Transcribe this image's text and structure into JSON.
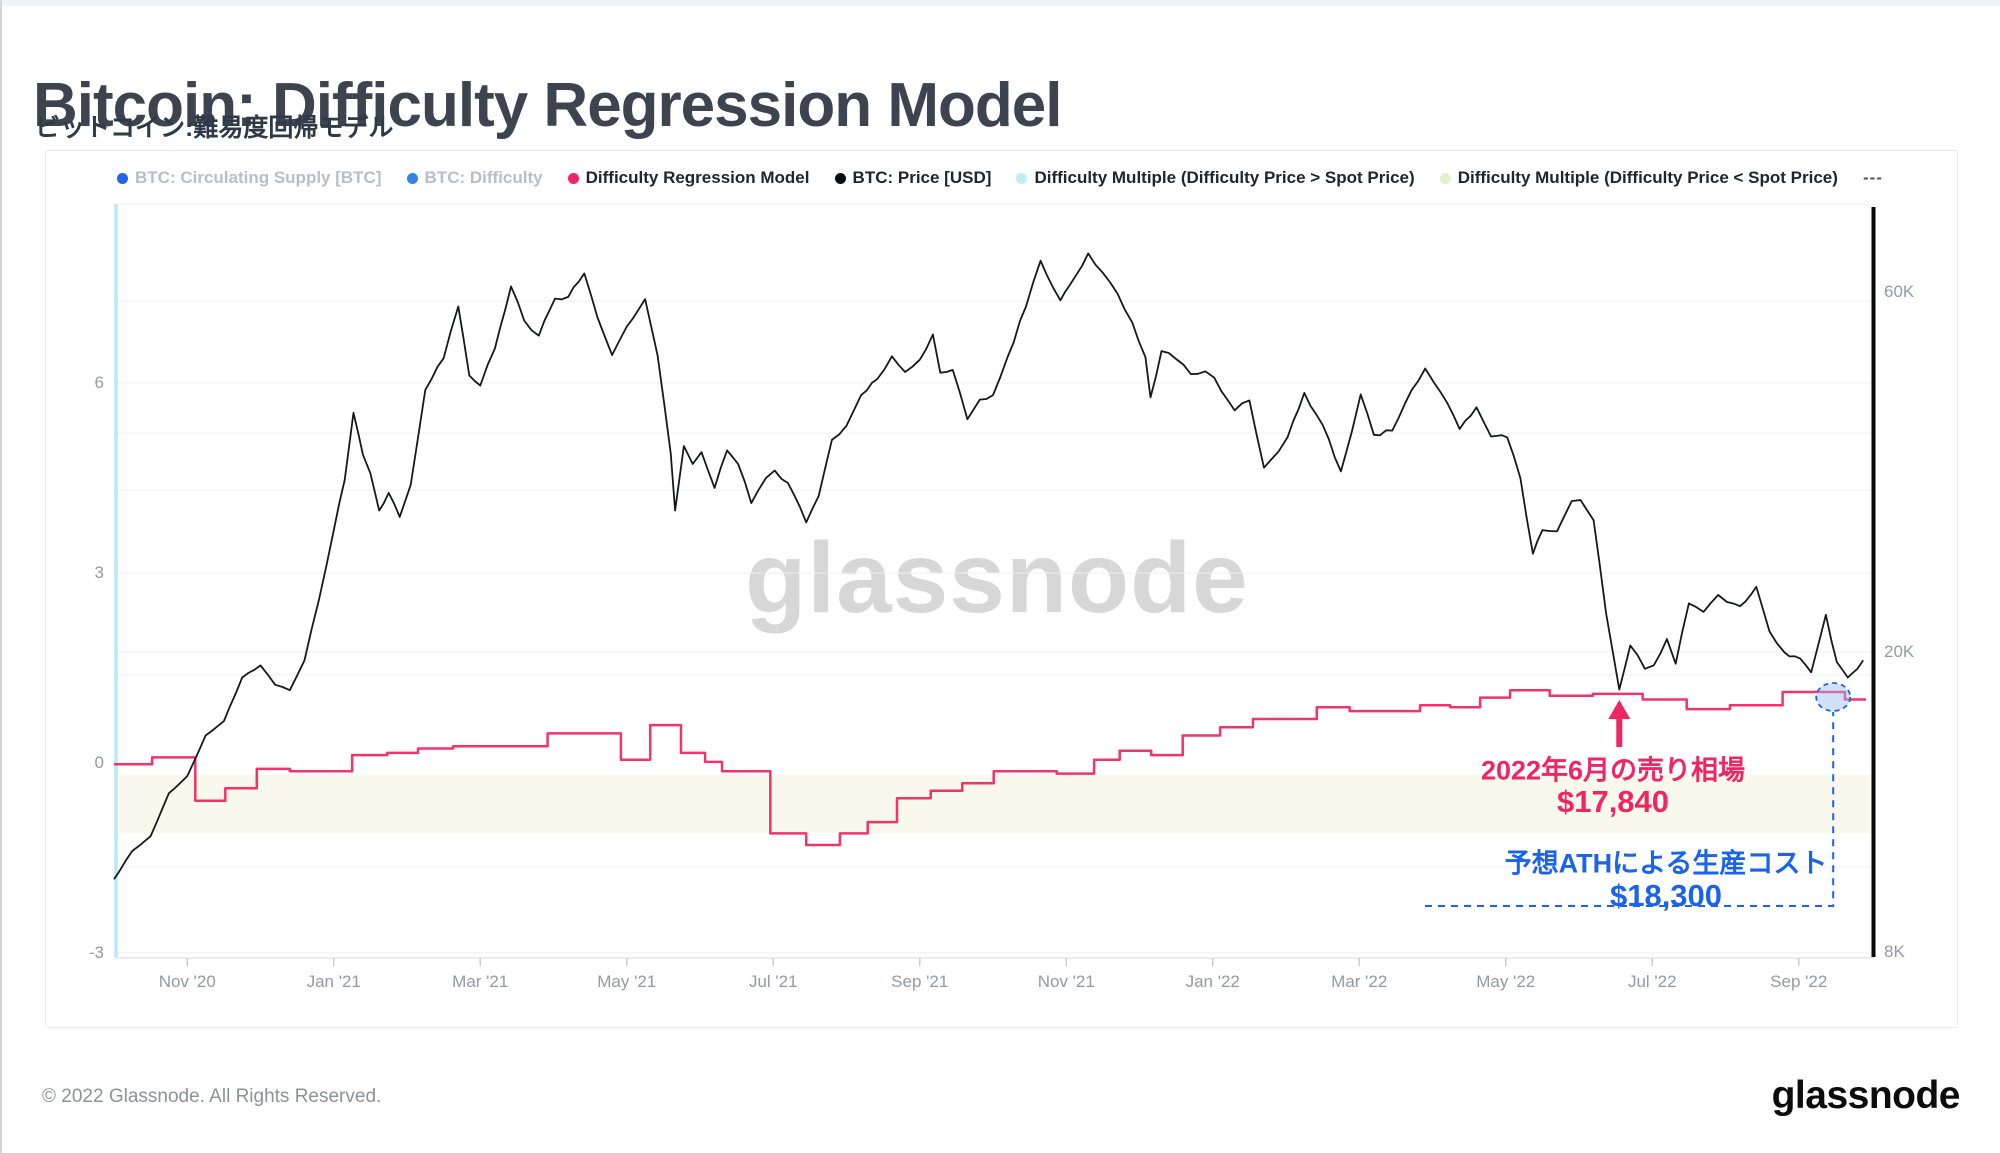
{
  "page": {
    "title": "Bitcoin: Difficulty Regression Model",
    "subtitle": "ビットコイン:難易度回帰モデル"
  },
  "legend": {
    "items": [
      {
        "label": "BTC: Circulating Supply [BTC]",
        "color": "#2563e8",
        "muted": true
      },
      {
        "label": "BTC: Difficulty",
        "color": "#2e86e0",
        "muted": true
      },
      {
        "label": "Difficulty Regression Model",
        "color": "#f0246b",
        "muted": false
      },
      {
        "label": "BTC: Price [USD]",
        "color": "#0b0d10",
        "muted": false
      },
      {
        "label": "Difficulty Multiple (Difficulty Price > Spot Price)",
        "color": "#bfecf5",
        "muted": false
      },
      {
        "label": "Difficulty Multiple (Difficulty Price < Spot Price)",
        "color": "#e7eecb",
        "muted": false
      },
      {
        "label": "---",
        "color": null,
        "muted": false,
        "overflow": true
      }
    ]
  },
  "watermark": "glassnode",
  "annotations": {
    "sell_event": {
      "line1": "2022年6月の売り相場",
      "line2": "$17,840",
      "color": "#f02563"
    },
    "production_cost": {
      "line1": "予想ATHによる生産コスト",
      "line2": "$18,300",
      "color": "#1b63e8"
    }
  },
  "footer": {
    "copyright": "© 2022 Glassnode. All Rights Reserved.",
    "brand": "glassnode"
  },
  "chart_data": {
    "type": "line",
    "title": "Bitcoin: Difficulty Regression Model",
    "x_axis": {
      "unit": "months since Oct 1 2020",
      "range_months": [
        0,
        24
      ],
      "tick_labels": [
        "Nov '20",
        "Jan '21",
        "Mar '21",
        "May '21",
        "Jul '21",
        "Sep '21",
        "Nov '21",
        "Jan '22",
        "Mar '22",
        "May '22",
        "Jul '22",
        "Sep '22"
      ],
      "tick_months": [
        1,
        3,
        5,
        7,
        9,
        11,
        13,
        15,
        17,
        19,
        21,
        23
      ]
    },
    "y_axis_left": {
      "scale": "linear",
      "tick_labels": [
        "6",
        "3",
        "0",
        "-3"
      ],
      "tick_values": [
        6,
        3,
        0,
        -3
      ]
    },
    "y_axis_right": {
      "scale": "log",
      "unit": "USD",
      "tick_labels": [
        "60K",
        "20K",
        "8K"
      ],
      "tick_values": [
        60000,
        20000,
        8000
      ]
    },
    "grid": true,
    "legend_position": "top",
    "series": [
      {
        "name": "BTC: Price [USD]",
        "type": "line",
        "color": "#16181c",
        "unit": "USD thousands",
        "points": [
          [
            0,
            10.0
          ],
          [
            0.25,
            10.9
          ],
          [
            0.5,
            11.4
          ],
          [
            0.75,
            13.0
          ],
          [
            1,
            13.7
          ],
          [
            1.25,
            15.5
          ],
          [
            1.5,
            16.2
          ],
          [
            1.75,
            18.5
          ],
          [
            2,
            19.2
          ],
          [
            2.2,
            18.1
          ],
          [
            2.4,
            17.8
          ],
          [
            2.6,
            19.5
          ],
          [
            2.8,
            23.5
          ],
          [
            3,
            29.0
          ],
          [
            3.15,
            33.8
          ],
          [
            3.27,
            41.5
          ],
          [
            3.4,
            36.5
          ],
          [
            3.5,
            34.5
          ],
          [
            3.62,
            30.8
          ],
          [
            3.75,
            32.5
          ],
          [
            3.9,
            30.2
          ],
          [
            4.05,
            33.3
          ],
          [
            4.25,
            44.5
          ],
          [
            4.5,
            49.0
          ],
          [
            4.7,
            57.4
          ],
          [
            4.85,
            46.5
          ],
          [
            5,
            45.1
          ],
          [
            5.2,
            50.5
          ],
          [
            5.42,
            61.0
          ],
          [
            5.6,
            55.0
          ],
          [
            5.8,
            52.5
          ],
          [
            6.02,
            58.8
          ],
          [
            6.2,
            59.1
          ],
          [
            6.42,
            63.5
          ],
          [
            6.6,
            55.5
          ],
          [
            6.8,
            49.5
          ],
          [
            7,
            54.0
          ],
          [
            7.25,
            58.7
          ],
          [
            7.42,
            49.5
          ],
          [
            7.6,
            36.7
          ],
          [
            7.66,
            30.8
          ],
          [
            7.78,
            37.5
          ],
          [
            7.9,
            35.5
          ],
          [
            8.02,
            36.8
          ],
          [
            8.2,
            33.0
          ],
          [
            8.37,
            37.0
          ],
          [
            8.52,
            35.5
          ],
          [
            8.7,
            31.5
          ],
          [
            8.9,
            34.0
          ],
          [
            9.02,
            34.8
          ],
          [
            9.2,
            33.5
          ],
          [
            9.45,
            29.7
          ],
          [
            9.62,
            32.2
          ],
          [
            9.8,
            38.2
          ],
          [
            10,
            39.9
          ],
          [
            10.2,
            43.8
          ],
          [
            10.42,
            46.0
          ],
          [
            10.62,
            49.3
          ],
          [
            10.8,
            47.0
          ],
          [
            11,
            48.8
          ],
          [
            11.18,
            52.7
          ],
          [
            11.28,
            46.9
          ],
          [
            11.45,
            47.3
          ],
          [
            11.65,
            40.7
          ],
          [
            11.82,
            43.2
          ],
          [
            12,
            43.8
          ],
          [
            12.2,
            49.2
          ],
          [
            12.45,
            57.4
          ],
          [
            12.65,
            66.0
          ],
          [
            12.82,
            60.8
          ],
          [
            12.92,
            58.5
          ],
          [
            13.05,
            61.3
          ],
          [
            13.3,
            67.5
          ],
          [
            13.5,
            63.6
          ],
          [
            13.7,
            59.7
          ],
          [
            13.9,
            54.7
          ],
          [
            14.08,
            49.2
          ],
          [
            14.15,
            43.5
          ],
          [
            14.3,
            50.1
          ],
          [
            14.5,
            48.9
          ],
          [
            14.7,
            46.7
          ],
          [
            14.9,
            47.1
          ],
          [
            15.02,
            46.2
          ],
          [
            15.3,
            41.8
          ],
          [
            15.5,
            43.1
          ],
          [
            15.7,
            35.1
          ],
          [
            15.9,
            36.9
          ],
          [
            16.02,
            38.5
          ],
          [
            16.25,
            44.1
          ],
          [
            16.5,
            40.0
          ],
          [
            16.75,
            34.7
          ],
          [
            16.9,
            39.2
          ],
          [
            17.02,
            43.9
          ],
          [
            17.2,
            38.8
          ],
          [
            17.45,
            39.3
          ],
          [
            17.62,
            42.6
          ],
          [
            17.9,
            47.5
          ],
          [
            18.02,
            45.5
          ],
          [
            18.2,
            42.8
          ],
          [
            18.37,
            39.5
          ],
          [
            18.6,
            42.2
          ],
          [
            18.8,
            38.6
          ],
          [
            19.02,
            38.5
          ],
          [
            19.2,
            34.0
          ],
          [
            19.37,
            27.0
          ],
          [
            19.5,
            29.0
          ],
          [
            19.7,
            28.9
          ],
          [
            19.9,
            31.7
          ],
          [
            20.02,
            31.8
          ],
          [
            20.2,
            29.9
          ],
          [
            20.37,
            22.5
          ],
          [
            20.55,
            17.84
          ],
          [
            20.7,
            20.4
          ],
          [
            20.9,
            19.0
          ],
          [
            21.02,
            19.2
          ],
          [
            21.2,
            20.8
          ],
          [
            21.32,
            19.3
          ],
          [
            21.5,
            23.2
          ],
          [
            21.7,
            22.6
          ],
          [
            21.9,
            23.8
          ],
          [
            22.02,
            23.3
          ],
          [
            22.2,
            23.0
          ],
          [
            22.42,
            24.4
          ],
          [
            22.6,
            21.3
          ],
          [
            22.8,
            20.0
          ],
          [
            23.02,
            19.6
          ],
          [
            23.17,
            18.8
          ],
          [
            23.37,
            22.4
          ],
          [
            23.52,
            19.4
          ],
          [
            23.67,
            18.5
          ],
          [
            23.8,
            19.0
          ],
          [
            23.88,
            19.5
          ]
        ]
      },
      {
        "name": "Difficulty Regression Model",
        "type": "step-after",
        "color": "#f0346c",
        "unit": "USD thousands",
        "points": [
          [
            0,
            14.2
          ],
          [
            0.52,
            14.5
          ],
          [
            1.11,
            12.7
          ],
          [
            1.52,
            13.2
          ],
          [
            1.95,
            14.0
          ],
          [
            2.4,
            13.9
          ],
          [
            3.25,
            14.6
          ],
          [
            3.73,
            14.7
          ],
          [
            4.15,
            14.9
          ],
          [
            4.63,
            15.0
          ],
          [
            5.09,
            15.0
          ],
          [
            5.52,
            15.0
          ],
          [
            5.92,
            15.6
          ],
          [
            6.4,
            15.6
          ],
          [
            6.92,
            14.4
          ],
          [
            7.32,
            16.0
          ],
          [
            7.74,
            14.7
          ],
          [
            8.07,
            14.3
          ],
          [
            8.3,
            13.9
          ],
          [
            8.96,
            11.5
          ],
          [
            9.45,
            11.1
          ],
          [
            9.91,
            11.5
          ],
          [
            10.29,
            11.9
          ],
          [
            10.69,
            12.8
          ],
          [
            11.15,
            13.1
          ],
          [
            11.58,
            13.4
          ],
          [
            12.01,
            13.9
          ],
          [
            12.87,
            13.8
          ],
          [
            13.38,
            14.4
          ],
          [
            13.73,
            14.8
          ],
          [
            14.16,
            14.6
          ],
          [
            14.59,
            15.5
          ],
          [
            15.1,
            15.9
          ],
          [
            15.55,
            16.3
          ],
          [
            16.42,
            16.9
          ],
          [
            16.87,
            16.7
          ],
          [
            17.83,
            17.0
          ],
          [
            18.24,
            16.9
          ],
          [
            18.65,
            17.4
          ],
          [
            19.06,
            17.8
          ],
          [
            19.6,
            17.5
          ],
          [
            20.19,
            17.6
          ],
          [
            20.87,
            17.3
          ],
          [
            21.47,
            16.8
          ],
          [
            22.06,
            17.0
          ],
          [
            22.78,
            17.7
          ],
          [
            23.63,
            17.3
          ],
          [
            23.92,
            17.3
          ]
        ]
      },
      {
        "name": "Difficulty Multiple (Difficulty Price > Spot Price)",
        "type": "area",
        "color": "#b9e9f6",
        "note": "visible as pale cyan vertical band at left edge of plot"
      },
      {
        "name": "Difficulty Multiple (Difficulty Price < Spot Price)",
        "type": "area",
        "color": "#f5f5e6",
        "note": "visible as pale yellow horizontal band below the zero line"
      }
    ],
    "chart_annotations": [
      {
        "kind": "arrow-up",
        "anchor_month": 20.55,
        "anchor_price_usd": 17840,
        "text": "2022年6月の売り相場 $17,840",
        "color": "#f02563"
      },
      {
        "kind": "dashed-circle-callout",
        "anchor_month": 23.47,
        "anchor_price_usd": 18300,
        "text": "予想ATHによる生産コスト $18,300",
        "color": "#1b63e8"
      }
    ]
  }
}
